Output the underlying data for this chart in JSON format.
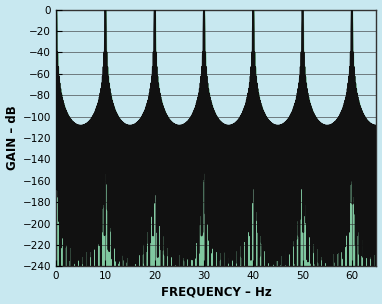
{
  "title": "",
  "xlabel": "FREQUENCY – Hz",
  "ylabel": "GAIN – dB",
  "xlim": [
    0,
    65
  ],
  "ylim": [
    -240,
    0
  ],
  "xticks": [
    0,
    10,
    20,
    30,
    40,
    50,
    60
  ],
  "yticks": [
    0,
    -20,
    -40,
    -60,
    -80,
    -100,
    -120,
    -140,
    -160,
    -180,
    -200,
    -220,
    -240
  ],
  "fs": 10,
  "N": 64,
  "order": 3,
  "fill_color": "#80C8A0",
  "line_color": "#111111",
  "bg_color": "#C8E8F0",
  "grid_color": "#333333",
  "xlabel_fontsize": 8.5,
  "ylabel_fontsize": 8.5,
  "tick_fontsize": 7.5,
  "linewidth": 1.2
}
